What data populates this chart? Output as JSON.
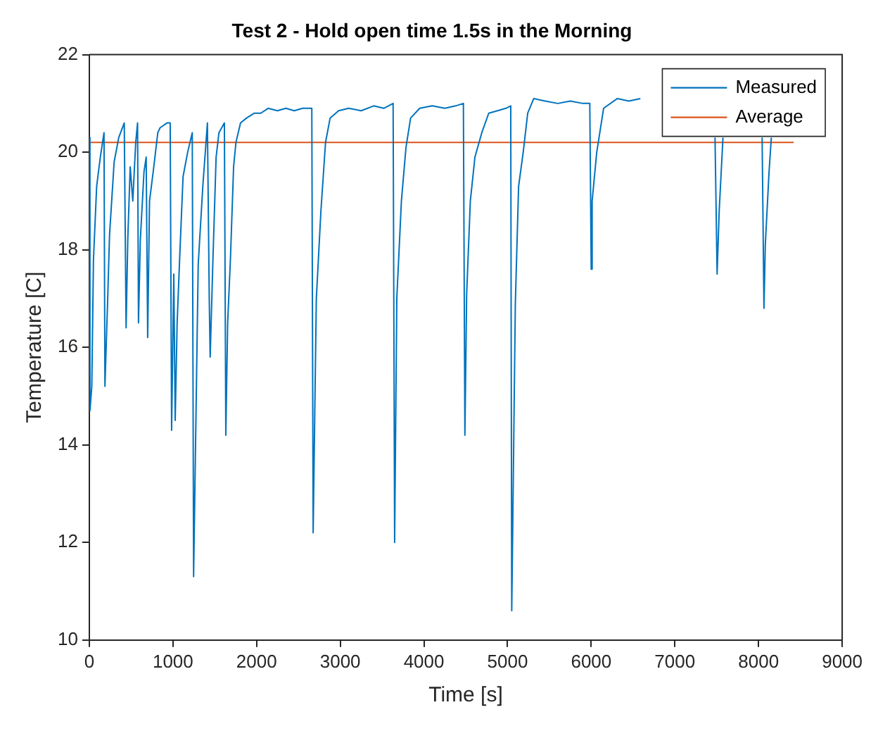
{
  "chart_data": {
    "type": "line",
    "title": "Test 2 - Hold open time 1.5s in the Morning",
    "xlabel": "Time [s]",
    "ylabel": "Temperature [C]",
    "xlim": [
      0,
      9000
    ],
    "xticks": [
      0,
      1000,
      2000,
      3000,
      4000,
      5000,
      6000,
      7000,
      8000,
      9000
    ],
    "ylim": [
      10,
      22
    ],
    "yticks": [
      10,
      12,
      14,
      16,
      18,
      20,
      22
    ],
    "grid": false,
    "legend": "top right",
    "marker": "none",
    "line_style": "solid",
    "series": [
      {
        "name": "Measured",
        "color": "#0072bd",
        "x": [
          0,
          8,
          30,
          50,
          88,
          132,
          176,
          187,
          220,
          242,
          297,
          352,
          418,
          440,
          460,
          489,
          520,
          555,
          577,
          588,
          610,
          654,
          680,
          698,
          720,
          764,
          819,
          846,
          929,
          967,
          984,
          1010,
          1027,
          1050,
          1082,
          1121,
          1176,
          1231,
          1247,
          1302,
          1357,
          1412,
          1434,
          1445,
          1478,
          1516,
          1550,
          1615,
          1632,
          1654,
          1687,
          1725,
          1753,
          1808,
          1880,
          1973,
          2050,
          2138,
          2250,
          2350,
          2450,
          2550,
          2660,
          2676,
          2714,
          2769,
          2824,
          2879,
          2980,
          3100,
          3250,
          3400,
          3520,
          3632,
          3650,
          3676,
          3731,
          3786,
          3841,
          3950,
          4100,
          4250,
          4380,
          4472,
          4490,
          4511,
          4555,
          4610,
          4692,
          4775,
          4880,
          4980,
          5038,
          5050,
          5093,
          5132,
          5187,
          5241,
          5313,
          5450,
          5600,
          5750,
          5900,
          5983,
          6000,
          6011,
          6066,
          6148,
          6313,
          6450,
          6588,
          6620,
          7480,
          7505,
          7530,
          7575,
          7600,
          8043,
          8065,
          8081,
          8126,
          8153
        ],
        "values": [
          20.3,
          14.7,
          15.2,
          17.8,
          19.3,
          19.9,
          20.4,
          15.2,
          17.0,
          18.3,
          19.8,
          20.3,
          20.6,
          16.4,
          18.2,
          19.7,
          19.0,
          20.2,
          20.6,
          16.5,
          18.2,
          19.6,
          19.9,
          16.2,
          19.0,
          19.6,
          20.4,
          20.5,
          20.6,
          20.6,
          14.3,
          17.5,
          14.5,
          16.5,
          17.9,
          19.5,
          20.0,
          20.4,
          11.3,
          17.7,
          19.3,
          20.6,
          17.0,
          15.8,
          17.8,
          19.9,
          20.4,
          20.6,
          14.2,
          16.5,
          17.8,
          19.7,
          20.2,
          20.6,
          20.7,
          20.8,
          20.8,
          20.9,
          20.85,
          20.9,
          20.85,
          20.9,
          20.9,
          12.2,
          17.0,
          18.8,
          20.2,
          20.7,
          20.85,
          20.9,
          20.85,
          20.95,
          20.9,
          21.0,
          12.0,
          17.0,
          19.0,
          20.1,
          20.7,
          20.9,
          20.95,
          20.9,
          20.95,
          21.0,
          14.2,
          17.1,
          19.0,
          19.9,
          20.4,
          20.8,
          20.85,
          20.9,
          20.95,
          10.6,
          16.9,
          19.3,
          20.0,
          20.8,
          21.1,
          21.05,
          21.0,
          21.05,
          21.0,
          21.0,
          17.6,
          19.0,
          20.0,
          20.9,
          21.1,
          21.05,
          21.1,
          null,
          20.3,
          17.5,
          18.8,
          20.3,
          null,
          20.3,
          16.8,
          18.1,
          19.6,
          20.3
        ]
      },
      {
        "name": "Average",
        "color": "#d95319",
        "x": [
          0,
          8420
        ],
        "values": [
          20.2,
          20.2
        ]
      }
    ]
  }
}
